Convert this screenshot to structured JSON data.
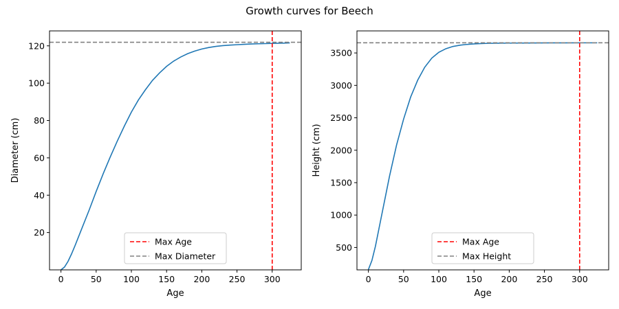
{
  "figure_title": "Growth curves for Beech",
  "chart_data": [
    {
      "type": "line",
      "xlabel": "Age",
      "ylabel": "Diameter (cm)",
      "xlim": [
        -16.25,
        341.25
      ],
      "ylim": [
        0,
        128
      ],
      "x_ticks": [
        0,
        50,
        100,
        150,
        200,
        250,
        300
      ],
      "y_ticks": [
        20,
        40,
        60,
        80,
        100,
        120
      ],
      "grid": false,
      "legend_position": "lower center",
      "series": [
        {
          "color": "#1f77b4",
          "x": [
            0,
            5,
            10,
            15,
            20,
            30,
            40,
            50,
            60,
            70,
            80,
            90,
            100,
            110,
            120,
            130,
            140,
            150,
            160,
            170,
            180,
            190,
            200,
            210,
            220,
            230,
            240,
            250,
            260,
            270,
            280,
            290,
            300,
            310,
            320,
            325
          ],
          "y": [
            0,
            1.5,
            4.5,
            8.5,
            13,
            22.5,
            32,
            42,
            51.5,
            60.5,
            69,
            77,
            84.5,
            91,
            96.5,
            101.5,
            105.5,
            109,
            111.8,
            114,
            115.8,
            117.2,
            118.3,
            119.1,
            119.7,
            120.1,
            120.4,
            120.6,
            120.8,
            121,
            121.1,
            121.2,
            121.3,
            121.4,
            121.5,
            121.6
          ]
        }
      ],
      "reference_lines": [
        {
          "name": "Max Age",
          "orientation": "vertical",
          "value": 300,
          "color": "#ff0000",
          "style": "dashed"
        },
        {
          "name": "Max Diameter",
          "orientation": "horizontal",
          "value": 121.9,
          "color": "#808080",
          "style": "dashed"
        }
      ]
    },
    {
      "type": "line",
      "xlabel": "Age",
      "ylabel": "Height (cm)",
      "xlim": [
        -16.25,
        341.25
      ],
      "ylim": [
        155,
        3840
      ],
      "x_ticks": [
        0,
        50,
        100,
        150,
        200,
        250,
        300
      ],
      "y_ticks": [
        500,
        1000,
        1500,
        2000,
        2500,
        3000,
        3500
      ],
      "grid": false,
      "legend_position": "lower center",
      "series": [
        {
          "color": "#1f77b4",
          "x": [
            0,
            5,
            10,
            15,
            20,
            25,
            30,
            40,
            50,
            60,
            70,
            80,
            90,
            100,
            110,
            120,
            130,
            140,
            150,
            160,
            170,
            180,
            190,
            200,
            220,
            240,
            260,
            280,
            300,
            325
          ],
          "y": [
            160,
            300,
            520,
            790,
            1060,
            1330,
            1600,
            2080,
            2480,
            2820,
            3080,
            3280,
            3420,
            3510,
            3565,
            3600,
            3620,
            3632,
            3640,
            3645,
            3648,
            3650,
            3651,
            3652,
            3653,
            3654,
            3655,
            3655,
            3656,
            3656
          ]
        }
      ],
      "reference_lines": [
        {
          "name": "Max Age",
          "orientation": "vertical",
          "value": 300,
          "color": "#ff0000",
          "style": "dashed"
        },
        {
          "name": "Max Height",
          "orientation": "horizontal",
          "value": 3657,
          "color": "#808080",
          "style": "dashed"
        }
      ]
    }
  ]
}
